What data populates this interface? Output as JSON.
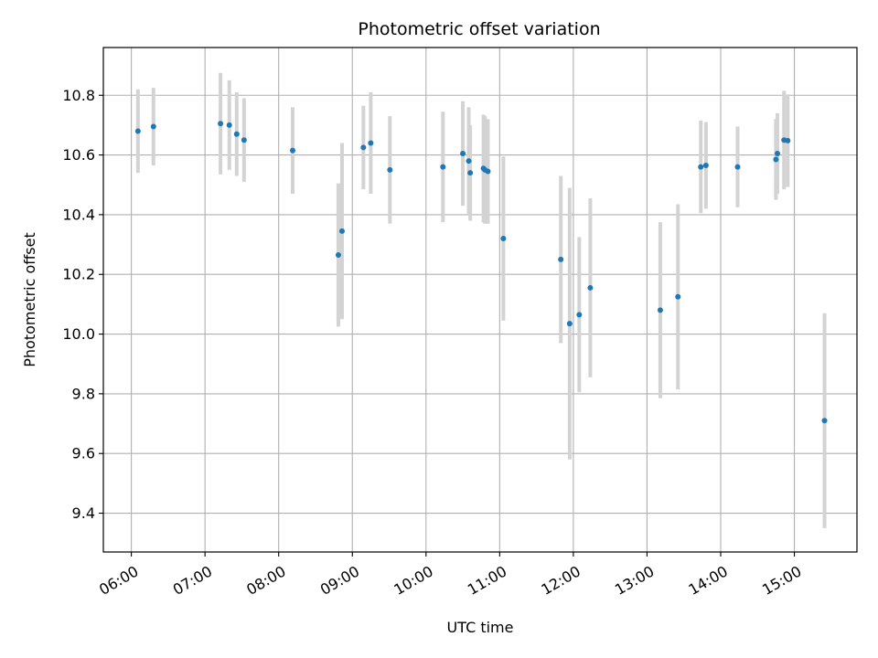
{
  "chart_data": {
    "type": "scatter",
    "title": "Photometric offset variation",
    "xlabel": "UTC time",
    "ylabel": "Photometric offset",
    "x_unit": "hours UTC",
    "xlim": [
      5.62,
      15.85
    ],
    "ylim": [
      9.27,
      10.96
    ],
    "x_ticks": [
      6,
      7,
      8,
      9,
      10,
      11,
      12,
      13,
      14,
      15
    ],
    "x_tick_labels": [
      "06:00",
      "07:00",
      "08:00",
      "09:00",
      "10:00",
      "11:00",
      "12:00",
      "13:00",
      "14:00",
      "15:00"
    ],
    "y_ticks": [
      9.4,
      9.6,
      9.8,
      10.0,
      10.2,
      10.4,
      10.6,
      10.8
    ],
    "y_tick_labels": [
      "9.4",
      "9.6",
      "9.8",
      "10.0",
      "10.2",
      "10.4",
      "10.6",
      "10.8"
    ],
    "grid": true,
    "point_color": "#1f77b4",
    "errorbar_color": "#d3d3d3",
    "series": [
      {
        "points": [
          {
            "x": 6.09,
            "y": 10.68,
            "err": 0.14
          },
          {
            "x": 6.3,
            "y": 10.695,
            "err": 0.13
          },
          {
            "x": 7.21,
            "y": 10.705,
            "err": 0.17
          },
          {
            "x": 7.33,
            "y": 10.7,
            "err": 0.15
          },
          {
            "x": 7.43,
            "y": 10.67,
            "err": 0.14
          },
          {
            "x": 7.53,
            "y": 10.65,
            "err": 0.14
          },
          {
            "x": 8.19,
            "y": 10.615,
            "err": 0.145
          },
          {
            "x": 8.81,
            "y": 10.265,
            "err": 0.24
          },
          {
            "x": 8.86,
            "y": 10.345,
            "err": 0.295
          },
          {
            "x": 9.15,
            "y": 10.625,
            "err": 0.14
          },
          {
            "x": 9.25,
            "y": 10.64,
            "err": 0.17
          },
          {
            "x": 9.51,
            "y": 10.55,
            "err": 0.18
          },
          {
            "x": 10.23,
            "y": 10.56,
            "err": 0.185
          },
          {
            "x": 10.5,
            "y": 10.605,
            "err": 0.175
          },
          {
            "x": 10.58,
            "y": 10.58,
            "err": 0.18
          },
          {
            "x": 10.6,
            "y": 10.54,
            "err": 0.16
          },
          {
            "x": 10.78,
            "y": 10.555,
            "err": 0.18
          },
          {
            "x": 10.8,
            "y": 10.55,
            "err": 0.18
          },
          {
            "x": 10.84,
            "y": 10.545,
            "err": 0.175
          },
          {
            "x": 11.05,
            "y": 10.32,
            "err": 0.275
          },
          {
            "x": 11.83,
            "y": 10.25,
            "err": 0.28
          },
          {
            "x": 11.95,
            "y": 10.035,
            "err": 0.455
          },
          {
            "x": 12.08,
            "y": 10.065,
            "err": 0.26
          },
          {
            "x": 12.23,
            "y": 10.155,
            "err": 0.3
          },
          {
            "x": 13.18,
            "y": 10.08,
            "err": 0.295
          },
          {
            "x": 13.42,
            "y": 10.125,
            "err": 0.31
          },
          {
            "x": 13.73,
            "y": 10.56,
            "err": 0.155
          },
          {
            "x": 13.8,
            "y": 10.565,
            "err": 0.145
          },
          {
            "x": 14.23,
            "y": 10.56,
            "err": 0.135
          },
          {
            "x": 14.75,
            "y": 10.585,
            "err": 0.135
          },
          {
            "x": 14.77,
            "y": 10.605,
            "err": 0.135
          },
          {
            "x": 14.86,
            "y": 10.65,
            "err": 0.165
          },
          {
            "x": 14.91,
            "y": 10.648,
            "err": 0.155
          },
          {
            "x": 15.41,
            "y": 9.71,
            "err": 0.36
          }
        ]
      }
    ]
  }
}
